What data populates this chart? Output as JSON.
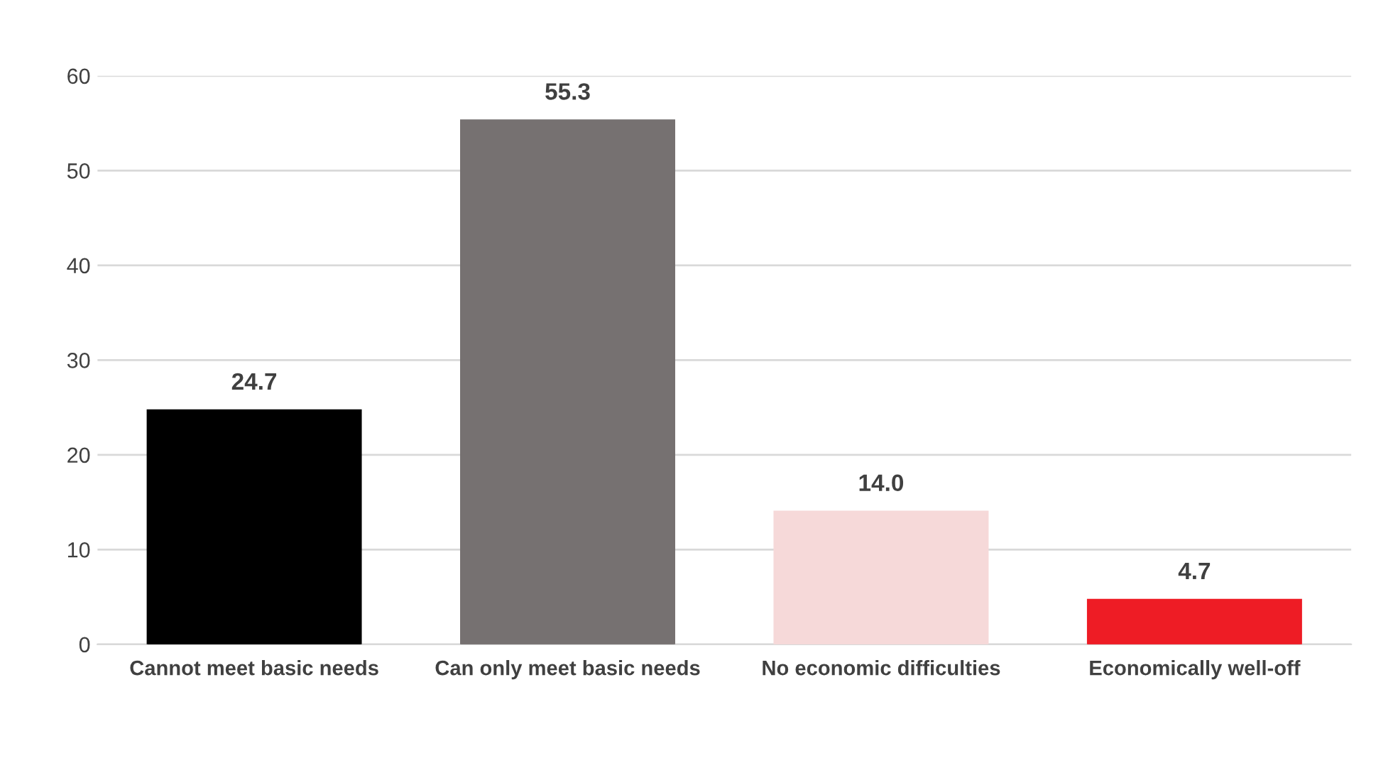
{
  "chart_data": {
    "type": "bar",
    "categories": [
      "Cannot meet basic needs",
      "Can only meet basic needs",
      "No economic difficulties",
      "Economically well-off"
    ],
    "values": [
      24.7,
      55.3,
      14.0,
      4.7
    ],
    "colors": [
      "#000000",
      "#767171",
      "#f6d9d9",
      "#ee1c25"
    ],
    "ylim": [
      0,
      60
    ],
    "yticks": [
      0,
      10,
      20,
      30,
      40,
      50,
      60
    ],
    "value_labels": [
      "24.7",
      "55.3",
      "14.0",
      "4.7"
    ],
    "grid": "y",
    "legend": false
  }
}
